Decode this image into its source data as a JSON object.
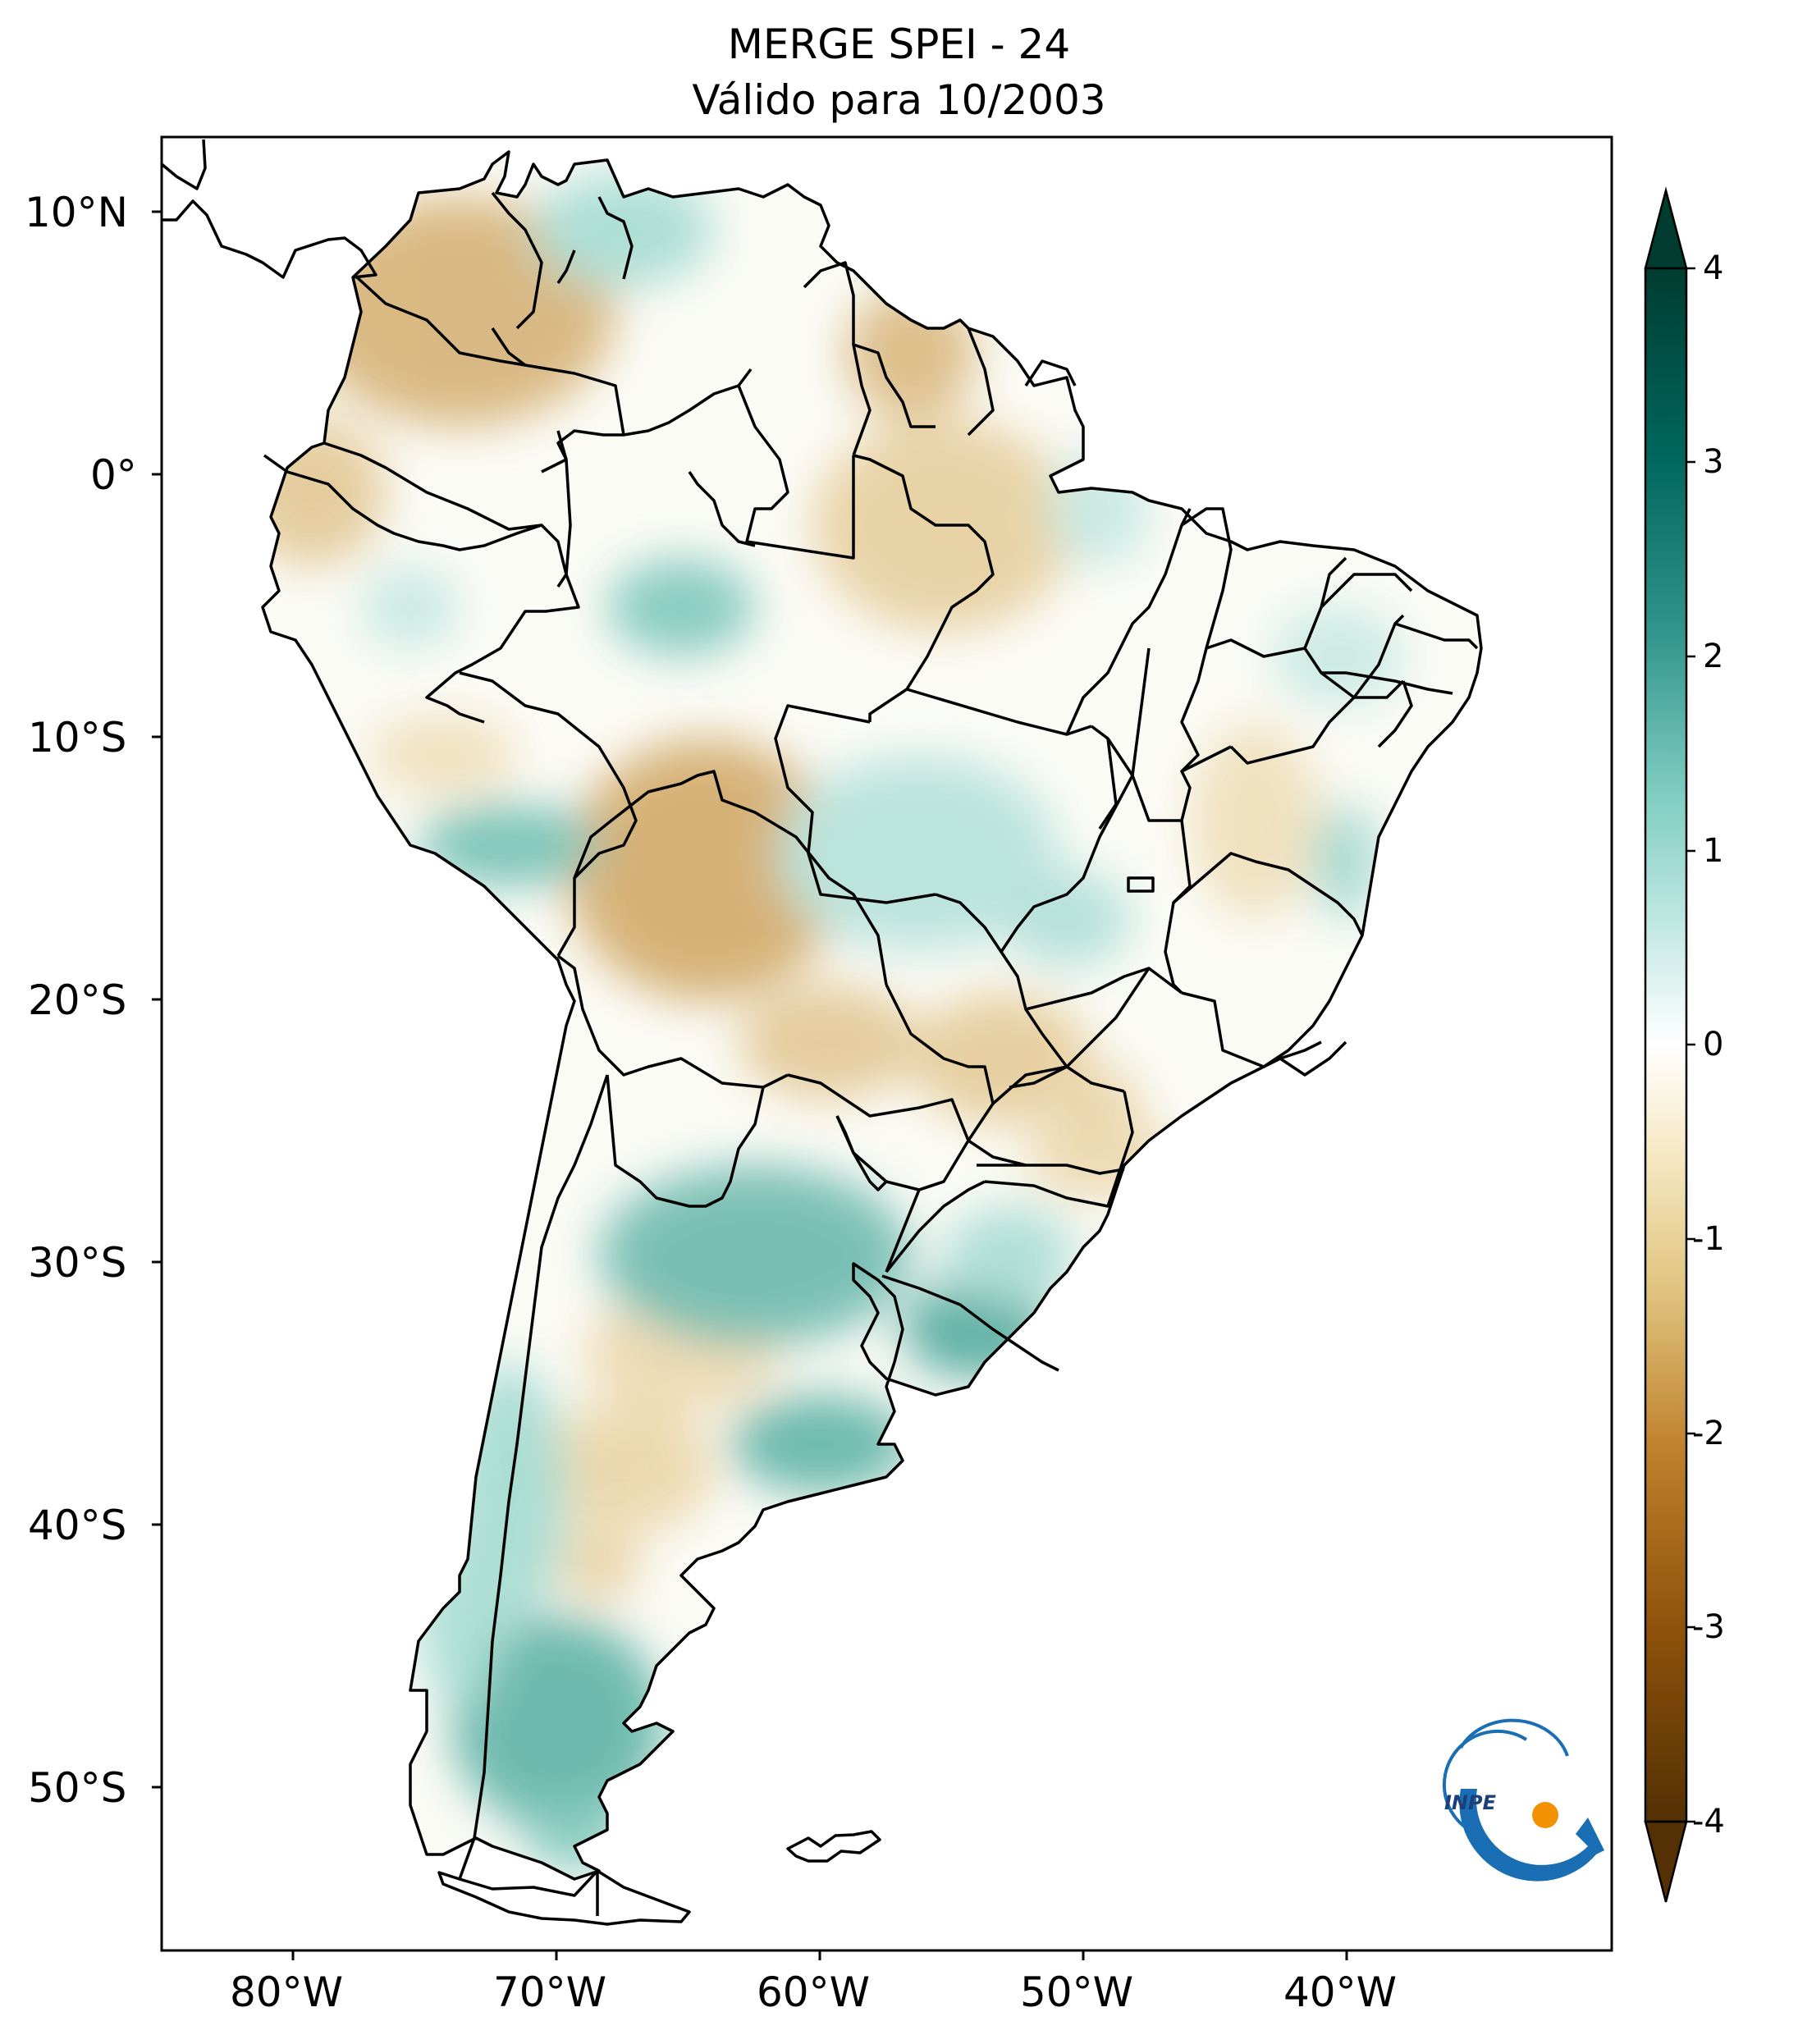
{
  "title": {
    "line1": "MERGE   SPEI - 24",
    "line2": "Válido para 10/2003"
  },
  "map": {
    "lat_ticks": [
      "10°N",
      "0°",
      "10°S",
      "20°S",
      "30°S",
      "40°S",
      "50°S"
    ],
    "lon_ticks": [
      "80°W",
      "70°W",
      "60°W",
      "50°W",
      "40°W"
    ],
    "extent": {
      "lon_min": -85,
      "lon_max": -30,
      "lat_min": -56,
      "lat_max": 13
    },
    "border_color": "#000000"
  },
  "colorbar": {
    "ticks": [
      "4",
      "3",
      "2",
      "1",
      "0",
      "-1",
      "-2",
      "-3",
      "-4"
    ],
    "range": [
      -4,
      4
    ],
    "colormap": "BrBG",
    "colors": [
      "#543005",
      "#8c510a",
      "#bf812d",
      "#dfc27d",
      "#f6e8c3",
      "#ffffff",
      "#c7eae5",
      "#80cdc1",
      "#35978f",
      "#01665e",
      "#003c30"
    ],
    "extend": "both"
  },
  "logo": {
    "text": "INPE",
    "colors": {
      "blue": "#1a6fb4",
      "orange": "#f39200"
    }
  }
}
